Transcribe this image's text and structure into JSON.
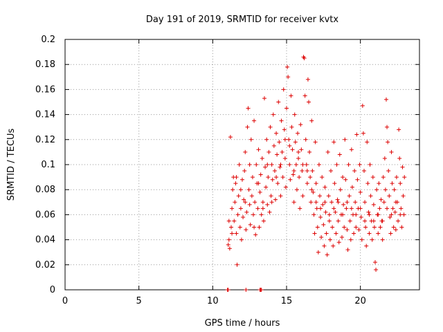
{
  "chart_data": {
    "type": "scatter",
    "title": "Day 191 of 2019, SRMTID for receiver kvtx",
    "xlabel": "GPS time / hours",
    "ylabel": "SRMTID / TECUs",
    "xlim": [
      0,
      24
    ],
    "ylim": [
      0,
      0.2
    ],
    "x_ticks": [
      {
        "value": 0,
        "label": "0"
      },
      {
        "value": 5,
        "label": "5"
      },
      {
        "value": 10,
        "label": "10"
      },
      {
        "value": 15,
        "label": "15"
      },
      {
        "value": 20,
        "label": "20"
      }
    ],
    "y_ticks": [
      {
        "value": 0,
        "label": "0"
      },
      {
        "value": 0.02,
        "label": "0.02"
      },
      {
        "value": 0.04,
        "label": "0.04"
      },
      {
        "value": 0.06,
        "label": "0.06"
      },
      {
        "value": 0.08,
        "label": "0.08"
      },
      {
        "value": 0.1,
        "label": "0.1"
      },
      {
        "value": 0.12,
        "label": "0.12"
      },
      {
        "value": 0.14,
        "label": "0.14"
      },
      {
        "value": 0.16,
        "label": "0.16"
      },
      {
        "value": 0.18,
        "label": "0.18"
      },
      {
        "value": 0.2,
        "label": "0.2"
      }
    ],
    "grid": true,
    "marker": "plus",
    "series": [
      {
        "name": "SRMTID",
        "color": "#dd0000",
        "points": [
          [
            11.05,
            0.036
          ],
          [
            11.1,
            0.04
          ],
          [
            11.15,
            0.033
          ],
          [
            11.2,
            0.122
          ],
          [
            11.25,
            0.05
          ],
          [
            11.3,
            0.065
          ],
          [
            11.35,
            0.08
          ],
          [
            11.4,
            0.09
          ],
          [
            11.45,
            0.055
          ],
          [
            11.5,
            0.07
          ],
          [
            11.55,
            0.085
          ],
          [
            11.6,
            0.045
          ],
          [
            11.65,
            0.02
          ],
          [
            11.7,
            0.06
          ],
          [
            11.75,
            0.075
          ],
          [
            11.8,
            0.1
          ],
          [
            11.85,
            0.05
          ],
          [
            11.9,
            0.065
          ],
          [
            11.95,
            0.04
          ],
          [
            12.0,
            0.088
          ],
          [
            12.05,
            0.058
          ],
          [
            12.1,
            0.072
          ],
          [
            12.15,
            0.095
          ],
          [
            12.2,
            0.11
          ],
          [
            12.25,
            0.048
          ],
          [
            12.3,
            0.062
          ],
          [
            12.35,
            0.13
          ],
          [
            12.4,
            0.145
          ],
          [
            12.45,
            0.08
          ],
          [
            12.5,
            0.068
          ],
          [
            12.55,
            0.052
          ],
          [
            12.6,
            0.12
          ],
          [
            12.65,
            0.075
          ],
          [
            12.7,
            0.09
          ],
          [
            12.75,
            0.06
          ],
          [
            12.8,
            0.135
          ],
          [
            12.85,
            0.07
          ],
          [
            12.9,
            0.044
          ],
          [
            12.95,
            0.1
          ],
          [
            13.0,
            0.085
          ],
          [
            13.05,
            0.065
          ],
          [
            13.1,
            0.112
          ],
          [
            13.15,
            0.05
          ],
          [
            13.2,
            0.078
          ],
          [
            13.25,
            0.092
          ],
          [
            13.3,
            0.06
          ],
          [
            13.35,
            0.105
          ],
          [
            13.4,
            0.07
          ],
          [
            13.45,
            0.055
          ],
          [
            13.5,
            0.153
          ],
          [
            13.55,
            0.098
          ],
          [
            13.6,
            0.082
          ],
          [
            13.65,
            0.12
          ],
          [
            13.7,
            0.068
          ],
          [
            13.75,
            0.09
          ],
          [
            13.8,
            0.11
          ],
          [
            13.85,
            0.062
          ],
          [
            13.9,
            0.13
          ],
          [
            13.95,
            0.075
          ],
          [
            14.0,
            0.1
          ],
          [
            14.05,
            0.088
          ],
          [
            14.1,
            0.14
          ],
          [
            14.15,
            0.115
          ],
          [
            14.2,
            0.095
          ],
          [
            14.25,
            0.072
          ],
          [
            14.3,
            0.125
          ],
          [
            14.35,
            0.108
          ],
          [
            14.4,
            0.085
          ],
          [
            14.45,
            0.15
          ],
          [
            14.5,
            0.118
          ],
          [
            14.55,
            0.098
          ],
          [
            14.6,
            0.075
          ],
          [
            14.65,
            0.135
          ],
          [
            14.7,
            0.11
          ],
          [
            14.75,
            0.09
          ],
          [
            14.8,
            0.16
          ],
          [
            14.85,
            0.128
          ],
          [
            14.9,
            0.105
          ],
          [
            14.95,
            0.082
          ],
          [
            15.0,
            0.145
          ],
          [
            15.05,
            0.178
          ],
          [
            15.1,
            0.17
          ],
          [
            15.15,
            0.12
          ],
          [
            15.2,
            0.1
          ],
          [
            15.25,
            0.088
          ],
          [
            15.3,
            0.155
          ],
          [
            15.35,
            0.13
          ],
          [
            15.4,
            0.112
          ],
          [
            15.45,
            0.092
          ],
          [
            15.5,
            0.07
          ],
          [
            15.55,
            0.14
          ],
          [
            15.6,
            0.118
          ],
          [
            15.65,
            0.1
          ],
          [
            15.7,
            0.08
          ],
          [
            15.75,
            0.125
          ],
          [
            15.8,
            0.105
          ],
          [
            15.85,
            0.09
          ],
          [
            15.9,
            0.065
          ],
          [
            15.95,
            0.132
          ],
          [
            16.0,
            0.112
          ],
          [
            16.05,
            0.095
          ],
          [
            16.1,
            0.075
          ],
          [
            16.15,
            0.186
          ],
          [
            16.2,
            0.185
          ],
          [
            16.25,
            0.155
          ],
          [
            16.3,
            0.12
          ],
          [
            16.35,
            0.1
          ],
          [
            16.4,
            0.085
          ],
          [
            16.45,
            0.168
          ],
          [
            16.5,
            0.15
          ],
          [
            16.55,
            0.11
          ],
          [
            16.6,
            0.09
          ],
          [
            16.65,
            0.07
          ],
          [
            16.7,
            0.135
          ],
          [
            16.75,
            0.095
          ],
          [
            16.8,
            0.078
          ],
          [
            16.85,
            0.06
          ],
          [
            16.9,
            0.045
          ],
          [
            16.95,
            0.118
          ],
          [
            17.0,
            0.085
          ],
          [
            17.05,
            0.065
          ],
          [
            17.1,
            0.05
          ],
          [
            17.15,
            0.03
          ],
          [
            17.2,
            0.1
          ],
          [
            17.25,
            0.075
          ],
          [
            17.3,
            0.058
          ],
          [
            17.35,
            0.042
          ],
          [
            17.4,
            0.09
          ],
          [
            17.45,
            0.068
          ],
          [
            17.5,
            0.052
          ],
          [
            17.55,
            0.035
          ],
          [
            17.6,
            0.082
          ],
          [
            17.65,
            0.062
          ],
          [
            17.7,
            0.045
          ],
          [
            17.75,
            0.028
          ],
          [
            17.8,
            0.11
          ],
          [
            17.85,
            0.075
          ],
          [
            17.9,
            0.055
          ],
          [
            17.95,
            0.04
          ],
          [
            18.0,
            0.095
          ],
          [
            18.05,
            0.07
          ],
          [
            18.1,
            0.05
          ],
          [
            18.15,
            0.035
          ],
          [
            18.2,
            0.118
          ],
          [
            18.25,
            0.085
          ],
          [
            18.3,
            0.062
          ],
          [
            18.35,
            0.045
          ],
          [
            18.4,
            0.1
          ],
          [
            18.45,
            0.072
          ],
          [
            18.5,
            0.055
          ],
          [
            18.55,
            0.038
          ],
          [
            18.6,
            0.108
          ],
          [
            18.65,
            0.08
          ],
          [
            18.7,
            0.06
          ],
          [
            18.75,
            0.042
          ],
          [
            18.8,
            0.09
          ],
          [
            18.85,
            0.068
          ],
          [
            18.9,
            0.05
          ],
          [
            18.95,
            0.12
          ],
          [
            19.0,
            0.088
          ],
          [
            19.05,
            0.065
          ],
          [
            19.1,
            0.048
          ],
          [
            19.15,
            0.032
          ],
          [
            19.2,
            0.1
          ],
          [
            19.25,
            0.075
          ],
          [
            19.3,
            0.055
          ],
          [
            19.35,
            0.04
          ],
          [
            19.4,
            0.112
          ],
          [
            19.45,
            0.082
          ],
          [
            19.5,
            0.06
          ],
          [
            19.55,
            0.045
          ],
          [
            19.6,
            0.095
          ],
          [
            19.65,
            0.07
          ],
          [
            19.7,
            0.05
          ],
          [
            19.75,
            0.124
          ],
          [
            19.8,
            0.088
          ],
          [
            19.85,
            0.065
          ],
          [
            19.9,
            0.048
          ],
          [
            19.95,
            0.1
          ],
          [
            20.0,
            0.078
          ],
          [
            20.05,
            0.058
          ],
          [
            20.1,
            0.04
          ],
          [
            20.15,
            0.147
          ],
          [
            20.2,
            0.125
          ],
          [
            20.25,
            0.095
          ],
          [
            20.3,
            0.07
          ],
          [
            20.35,
            0.05
          ],
          [
            20.4,
            0.035
          ],
          [
            20.45,
            0.118
          ],
          [
            20.5,
            0.085
          ],
          [
            20.55,
            0.062
          ],
          [
            20.6,
            0.045
          ],
          [
            20.65,
            0.1
          ],
          [
            20.7,
            0.075
          ],
          [
            20.75,
            0.055
          ],
          [
            20.8,
            0.04
          ],
          [
            20.85,
            0.09
          ],
          [
            20.9,
            0.068
          ],
          [
            20.95,
            0.05
          ],
          [
            21.0,
            0.022
          ],
          [
            21.05,
            0.016
          ],
          [
            21.1,
            0.08
          ],
          [
            21.15,
            0.06
          ],
          [
            21.2,
            0.045
          ],
          [
            21.25,
            0.085
          ],
          [
            21.3,
            0.065
          ],
          [
            21.35,
            0.05
          ],
          [
            21.4,
            0.072
          ],
          [
            21.45,
            0.055
          ],
          [
            21.5,
            0.04
          ],
          [
            21.55,
            0.09
          ],
          [
            21.6,
            0.07
          ],
          [
            21.65,
            0.105
          ],
          [
            21.7,
            0.08
          ],
          [
            21.75,
            0.152
          ],
          [
            21.8,
            0.13
          ],
          [
            21.85,
            0.118
          ],
          [
            21.9,
            0.095
          ],
          [
            21.95,
            0.075
          ],
          [
            22.0,
            0.058
          ],
          [
            22.05,
            0.045
          ],
          [
            22.1,
            0.11
          ],
          [
            22.15,
            0.085
          ],
          [
            22.2,
            0.065
          ],
          [
            22.25,
            0.05
          ],
          [
            22.3,
            0.08
          ],
          [
            22.35,
            0.062
          ],
          [
            22.4,
            0.048
          ],
          [
            22.45,
            0.09
          ],
          [
            22.5,
            0.07
          ],
          [
            22.55,
            0.055
          ],
          [
            22.6,
            0.128
          ],
          [
            22.65,
            0.105
          ],
          [
            22.7,
            0.085
          ],
          [
            22.75,
            0.065
          ],
          [
            22.8,
            0.05
          ],
          [
            22.85,
            0.098
          ],
          [
            22.9,
            0.075
          ],
          [
            22.95,
            0.06
          ],
          [
            22.98,
            0.09
          ],
          [
            11.1,
            0.055
          ],
          [
            11.3,
            0.045
          ],
          [
            11.6,
            0.09
          ],
          [
            11.9,
            0.08
          ],
          [
            12.2,
            0.07
          ],
          [
            12.5,
            0.1
          ],
          [
            12.8,
            0.05
          ],
          [
            13.1,
            0.085
          ],
          [
            13.4,
            0.065
          ],
          [
            13.7,
            0.1
          ],
          [
            14.0,
            0.07
          ],
          [
            14.3,
            0.09
          ],
          [
            14.6,
            0.1
          ],
          [
            14.9,
            0.12
          ],
          [
            15.2,
            0.115
          ],
          [
            15.5,
            0.095
          ],
          [
            15.8,
            0.11
          ],
          [
            16.1,
            0.1
          ],
          [
            16.4,
            0.095
          ],
          [
            16.7,
            0.08
          ],
          [
            17.0,
            0.07
          ],
          [
            17.3,
            0.065
          ],
          [
            17.6,
            0.07
          ],
          [
            17.9,
            0.06
          ],
          [
            18.2,
            0.065
          ],
          [
            18.5,
            0.07
          ],
          [
            18.8,
            0.06
          ],
          [
            19.1,
            0.07
          ],
          [
            19.4,
            0.065
          ],
          [
            19.7,
            0.06
          ],
          [
            20.0,
            0.065
          ],
          [
            20.3,
            0.055
          ],
          [
            20.6,
            0.06
          ],
          [
            20.9,
            0.055
          ],
          [
            21.2,
            0.06
          ],
          [
            21.5,
            0.055
          ],
          [
            21.8,
            0.065
          ],
          [
            22.1,
            0.06
          ],
          [
            22.4,
            0.07
          ],
          [
            22.7,
            0.06
          ],
          [
            11.0,
            0.0
          ],
          [
            11.05,
            0.0
          ],
          [
            12.25,
            0.0
          ],
          [
            13.2,
            0.0
          ],
          [
            13.25,
            0.0
          ],
          [
            13.3,
            0.0
          ]
        ]
      }
    ]
  }
}
